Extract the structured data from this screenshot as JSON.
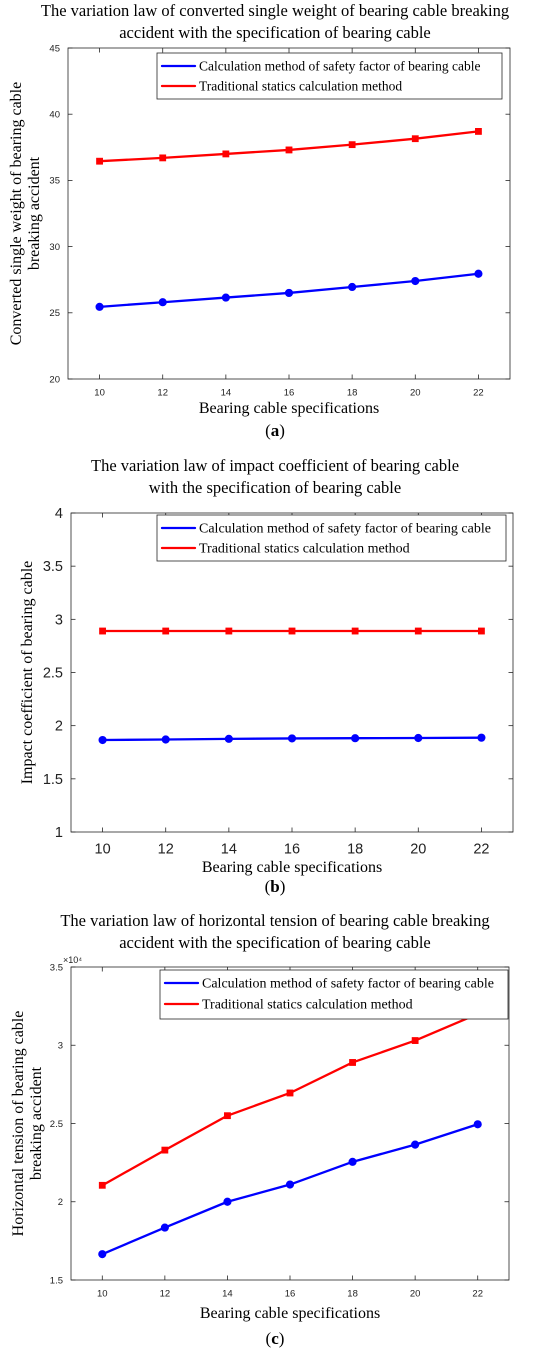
{
  "figure": {
    "panels": [
      {
        "title_lines": [
          "The variation law of converted single weight of bearing cable breaking",
          "accident with the specification of bearing cable"
        ],
        "caption_open": "(",
        "caption_letter": "a",
        "caption_close": ")",
        "legend_labels": [
          "Calculation method of safety factor of bearing cable",
          "Traditional statics calculation method"
        ],
        "xlabel": "Bearing cable specifications",
        "ylabel_lines": [
          "Converted single weight of bearing cable",
          "breaking accident"
        ]
      },
      {
        "title_lines": [
          "The variation law of impact coefficient of bearing cable",
          "with the specification of bearing cable"
        ],
        "caption_open": "(",
        "caption_letter": "b",
        "caption_close": ")",
        "legend_labels": [
          "Calculation method of safety factor of bearing cable",
          "Traditional statics calculation method"
        ],
        "xlabel": "Bearing cable specifications",
        "ylabel_lines": [
          "Impact coefficient of bearing cable"
        ]
      },
      {
        "title_lines": [
          "The variation law of horizontal tension of bearing cable breaking",
          "accident with the specification of bearing cable"
        ],
        "caption_open": "(",
        "caption_letter": "c",
        "caption_close": ")",
        "legend_labels": [
          "Calculation method of safety factor of bearing cable",
          "Traditional statics calculation method"
        ],
        "xlabel": "Bearing cable specifications",
        "ylabel_lines": [
          "Horizontal tension of bearing cable",
          "breaking accident"
        ]
      }
    ]
  },
  "chart_data": [
    {
      "type": "line",
      "title": "The variation law of converted single weight of bearing cable breaking accident with the specification of bearing cable",
      "xlabel": "Bearing cable specifications",
      "ylabel": "Converted single weight of bearing cable breaking accident",
      "x": [
        10,
        12,
        14,
        16,
        18,
        20,
        22
      ],
      "series": [
        {
          "name": "Calculation method of safety factor of bearing cable",
          "color": "#0000ff",
          "marker": "circle",
          "values": [
            25.45,
            25.8,
            26.15,
            26.5,
            26.95,
            27.4,
            27.95
          ]
        },
        {
          "name": "Traditional statics calculation method",
          "color": "#ff0000",
          "marker": "square",
          "values": [
            36.45,
            36.7,
            37.0,
            37.3,
            37.7,
            38.15,
            38.7
          ]
        }
      ],
      "xticks": [
        10,
        12,
        14,
        16,
        18,
        20,
        22
      ],
      "yticks": [
        20,
        25,
        30,
        35,
        40,
        45
      ],
      "xlim": [
        9,
        23
      ],
      "ylim": [
        20,
        45
      ],
      "grid": false,
      "legend": "top"
    },
    {
      "type": "line",
      "title": "The variation law of impact coefficient of bearing cable with the specification of bearing cable",
      "xlabel": "Bearing cable specifications",
      "ylabel": "Impact coefficient of bearing cable",
      "x": [
        10,
        12,
        14,
        16,
        18,
        20,
        22
      ],
      "series": [
        {
          "name": "Calculation method of safety factor of bearing cable",
          "color": "#0000ff",
          "marker": "circle",
          "values": [
            1.865,
            1.87,
            1.876,
            1.88,
            1.882,
            1.884,
            1.887
          ]
        },
        {
          "name": "Traditional statics calculation method",
          "color": "#ff0000",
          "marker": "square",
          "values": [
            2.89,
            2.89,
            2.89,
            2.89,
            2.89,
            2.89,
            2.89
          ]
        }
      ],
      "xticks": [
        10,
        12,
        14,
        16,
        18,
        20,
        22
      ],
      "yticks": [
        1,
        1.5,
        2,
        2.5,
        3,
        3.5,
        4
      ],
      "xlim": [
        9,
        23
      ],
      "ylim": [
        1,
        4
      ],
      "grid": false,
      "legend": "top-right"
    },
    {
      "type": "line",
      "title": "The variation law of horizontal tension of bearing cable breaking accident with the specification of bearing cable",
      "xlabel": "Bearing cable specifications",
      "ylabel": "Horizontal tension of bearing cable breaking accident",
      "x": [
        10,
        12,
        14,
        16,
        18,
        20,
        22
      ],
      "series": [
        {
          "name": "Calculation method of safety factor of bearing cable",
          "color": "#0000ff",
          "marker": "circle",
          "values": [
            16650,
            18350,
            20000,
            21100,
            22550,
            23650,
            24950
          ]
        },
        {
          "name": "Traditional statics calculation method",
          "color": "#ff0000",
          "marker": "square",
          "values": [
            21050,
            23300,
            25500,
            26950,
            28900,
            30300,
            32000
          ]
        }
      ],
      "xticks": [
        10,
        12,
        14,
        16,
        18,
        20,
        22
      ],
      "yticks": [
        15000,
        20000,
        25000,
        30000,
        35000
      ],
      "ytick_labels": [
        "1.5",
        "2",
        "2.5",
        "3",
        "3.5"
      ],
      "exponent_label": "×10⁴",
      "xlim": [
        9,
        23
      ],
      "ylim": [
        15000,
        35000
      ],
      "grid": false,
      "legend": "top"
    }
  ]
}
